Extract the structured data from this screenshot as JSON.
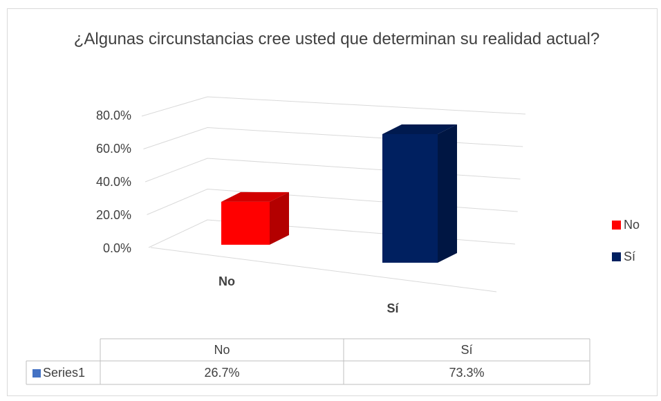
{
  "chart_data": {
    "type": "bar3d",
    "title": "¿Algunas circunstancias cree usted que determinan su realidad actual?",
    "categories": [
      "No",
      "Sí"
    ],
    "colors": [
      "#ff0000",
      "#002060"
    ],
    "series": [
      {
        "name": "Series1",
        "color": "#4472c4",
        "values": [
          26.7,
          73.3
        ],
        "value_labels": [
          "26.7%",
          "73.3%"
        ]
      }
    ],
    "ylim": [
      0,
      80
    ],
    "yticks": [
      {
        "value": 0,
        "label": "0.0%"
      },
      {
        "value": 20,
        "label": "20.0%"
      },
      {
        "value": 40,
        "label": "40.0%"
      },
      {
        "value": 60,
        "label": "60.0%"
      },
      {
        "value": 80,
        "label": "80.0%"
      }
    ],
    "grid": true,
    "legend": "right",
    "data_table": true
  }
}
